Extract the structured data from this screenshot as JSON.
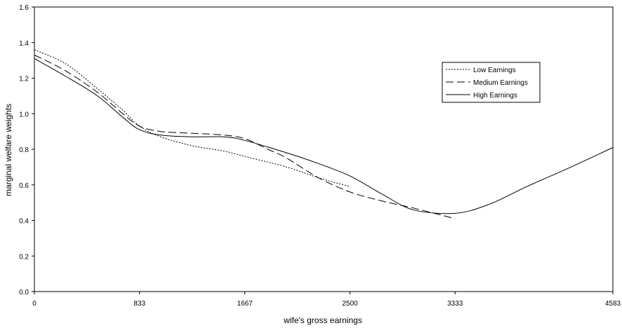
{
  "chart_data": {
    "type": "line",
    "title": "",
    "xlabel": "wife's gross earnings",
    "ylabel": "marginal welfare weights",
    "x_ticks": [
      "0",
      "833",
      "1667",
      "2500",
      "3333",
      "4583"
    ],
    "y_ticks": [
      "0.0",
      "0.2",
      "0.4",
      "0.6",
      "0.8",
      "1.0",
      "1.2",
      "1.4",
      "1.6"
    ],
    "ylim": [
      0,
      1.6
    ],
    "xlim": [
      0,
      4583
    ],
    "grid": false,
    "legend": "top-right",
    "series": [
      {
        "name": "Low Earnings",
        "style": "dotted",
        "points": [
          [
            0,
            1.36
          ],
          [
            250,
            1.28
          ],
          [
            500,
            1.14
          ],
          [
            700,
            1.02
          ],
          [
            833,
            0.93
          ],
          [
            1000,
            0.87
          ],
          [
            1250,
            0.82
          ],
          [
            1500,
            0.79
          ],
          [
            1667,
            0.76
          ],
          [
            2000,
            0.7
          ],
          [
            2250,
            0.64
          ],
          [
            2500,
            0.59
          ]
        ]
      },
      {
        "name": "Medium Earnings",
        "style": "dashed",
        "points": [
          [
            0,
            1.33
          ],
          [
            250,
            1.24
          ],
          [
            500,
            1.12
          ],
          [
            700,
            1.0
          ],
          [
            833,
            0.93
          ],
          [
            1000,
            0.9
          ],
          [
            1250,
            0.89
          ],
          [
            1500,
            0.88
          ],
          [
            1667,
            0.86
          ],
          [
            1850,
            0.8
          ],
          [
            2000,
            0.75
          ],
          [
            2250,
            0.64
          ],
          [
            2500,
            0.56
          ],
          [
            2750,
            0.51
          ],
          [
            3000,
            0.47
          ],
          [
            3333,
            0.41
          ]
        ]
      },
      {
        "name": "High Earnings",
        "style": "solid",
        "points": [
          [
            0,
            1.31
          ],
          [
            250,
            1.21
          ],
          [
            500,
            1.1
          ],
          [
            700,
            0.98
          ],
          [
            833,
            0.91
          ],
          [
            1000,
            0.88
          ],
          [
            1250,
            0.87
          ],
          [
            1500,
            0.87
          ],
          [
            1667,
            0.85
          ],
          [
            2000,
            0.78
          ],
          [
            2250,
            0.72
          ],
          [
            2500,
            0.65
          ],
          [
            2750,
            0.55
          ],
          [
            3000,
            0.46
          ],
          [
            3333,
            0.44
          ],
          [
            3600,
            0.49
          ],
          [
            3900,
            0.59
          ],
          [
            4250,
            0.7
          ],
          [
            4583,
            0.81
          ]
        ]
      }
    ]
  }
}
